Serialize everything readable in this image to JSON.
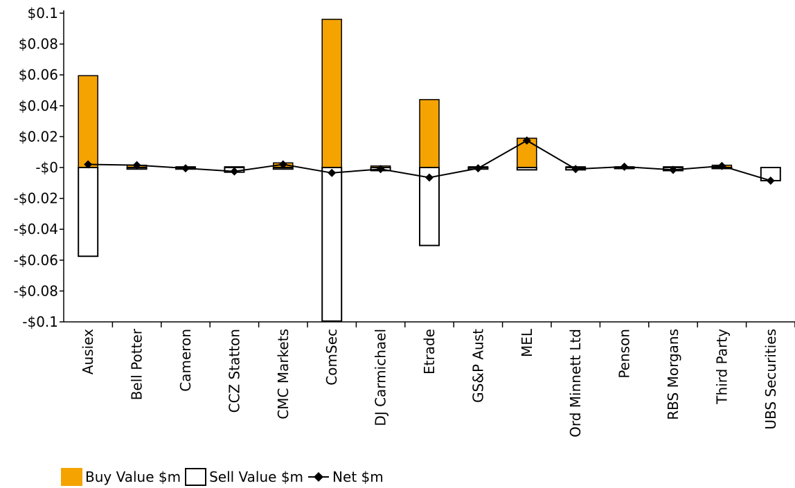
{
  "chart_data": {
    "type": "bar",
    "categories": [
      "Ausiex",
      "Bell Potter",
      "Cameron",
      "CCZ Statton",
      "CMC Markets",
      "ComSec",
      "DJ Carmichael",
      "Etrade",
      "GS&P Aust",
      "MEL",
      "Ord Minnett Ltd",
      "Penson",
      "RBS Morgans",
      "Third Party",
      "UBS Securities"
    ],
    "series": [
      {
        "name": "Buy Value $m",
        "kind": "bar",
        "color": "#f5a300",
        "values": [
          0.0595,
          0.0015,
          0.0005,
          0.0005,
          0.003,
          0.096,
          0.001,
          0.044,
          0.0005,
          0.019,
          0.0005,
          0.0005,
          0.0005,
          0.0015,
          0.0
        ]
      },
      {
        "name": "Sell Value $m",
        "kind": "bar",
        "color": "#ffffff",
        "values": [
          -0.0575,
          -0.001,
          -0.001,
          -0.003,
          -0.001,
          -0.0995,
          -0.002,
          -0.0505,
          -0.001,
          -0.0015,
          -0.0015,
          -0.0005,
          -0.002,
          -0.0005,
          -0.0085
        ]
      },
      {
        "name": "Net $m",
        "kind": "line",
        "color": "#000000",
        "values": [
          0.002,
          0.0015,
          -0.0005,
          -0.0025,
          0.002,
          -0.0035,
          -0.001,
          -0.0065,
          -0.0005,
          0.0175,
          -0.001,
          0.0005,
          -0.0015,
          0.001,
          -0.0085
        ]
      }
    ],
    "ylim": [
      -0.1,
      0.1
    ],
    "yticks": [
      {
        "value": 0.1,
        "label": "$0.1"
      },
      {
        "value": 0.08,
        "label": "$0.08"
      },
      {
        "value": 0.06,
        "label": "$0.06"
      },
      {
        "value": 0.04,
        "label": "$0.04"
      },
      {
        "value": 0.02,
        "label": "$0.02"
      },
      {
        "value": 0,
        "label": "-$0"
      },
      {
        "value": -0.02,
        "label": "-$0.02"
      },
      {
        "value": -0.04,
        "label": "-$0.04"
      },
      {
        "value": -0.06,
        "label": "-$0.06"
      },
      {
        "value": -0.08,
        "label": "-$0.08"
      },
      {
        "value": -0.1,
        "label": "-$0.1"
      }
    ],
    "xlabel": "",
    "ylabel": "",
    "title": "",
    "grid": false,
    "legend_position": "bottom-left"
  }
}
